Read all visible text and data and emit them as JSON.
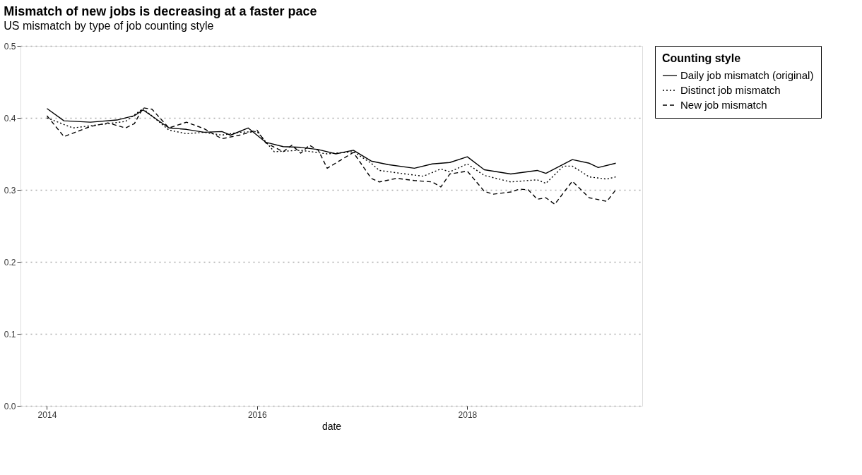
{
  "chart_data": {
    "type": "line",
    "title": "Mismatch of new jobs is decreasing at a faster pace",
    "subtitle": "US mismatch by type of job counting style",
    "xlabel": "date",
    "legend_title": "Counting style",
    "xlim": [
      "2013-10",
      "2019-09"
    ],
    "xticks": [
      "2014",
      "2016",
      "2018"
    ],
    "ylim": [
      0,
      0.5
    ],
    "yticks": [
      {
        "value": 0,
        "label": "0.0"
      },
      0.1,
      0.2,
      0.3,
      0.4,
      0.5
    ],
    "grid": "y",
    "legend": "right",
    "series": [
      {
        "name": "Daily job mismatch (original)",
        "color": "#000000",
        "line_style": "solid",
        "x": [
          "2014-01",
          "2014-03",
          "2014-06",
          "2014-09",
          "2014-11",
          "2014-12",
          "2015-03",
          "2015-05",
          "2015-07",
          "2015-09",
          "2015-10",
          "2015-12",
          "2016-02",
          "2016-04",
          "2016-06",
          "2016-08",
          "2016-10",
          "2016-12",
          "2017-02",
          "2017-04",
          "2017-07",
          "2017-09",
          "2017-11",
          "2018-01",
          "2018-03",
          "2018-06",
          "2018-09",
          "2018-10",
          "2019-01",
          "2019-03",
          "2019-04",
          "2019-06"
        ],
        "values": [
          0.413,
          0.396,
          0.394,
          0.397,
          0.403,
          0.411,
          0.386,
          0.384,
          0.38,
          0.381,
          0.376,
          0.386,
          0.366,
          0.36,
          0.359,
          0.356,
          0.35,
          0.355,
          0.34,
          0.335,
          0.33,
          0.336,
          0.338,
          0.346,
          0.328,
          0.322,
          0.327,
          0.323,
          0.342,
          0.337,
          0.331,
          0.337
        ]
      },
      {
        "name": "Distinct job mismatch",
        "color": "#000000",
        "line_style": "dotted",
        "x": [
          "2014-01",
          "2014-04",
          "2014-06",
          "2014-08",
          "2014-10",
          "2014-12",
          "2015-03",
          "2015-05",
          "2015-07",
          "2015-09",
          "2015-11",
          "2016-01",
          "2016-03",
          "2016-06",
          "2016-09",
          "2016-12",
          "2017-02",
          "2017-03",
          "2017-06",
          "2017-08",
          "2017-10",
          "2017-11",
          "2018-01",
          "2018-03",
          "2018-06",
          "2018-09",
          "2018-10",
          "2018-12",
          "2019-01",
          "2019-03",
          "2019-05",
          "2019-06"
        ],
        "values": [
          0.4,
          0.386,
          0.389,
          0.392,
          0.395,
          0.413,
          0.383,
          0.378,
          0.38,
          0.376,
          0.38,
          0.381,
          0.353,
          0.355,
          0.35,
          0.353,
          0.337,
          0.327,
          0.322,
          0.319,
          0.329,
          0.325,
          0.336,
          0.32,
          0.311,
          0.314,
          0.309,
          0.333,
          0.333,
          0.318,
          0.315,
          0.318
        ]
      },
      {
        "name": "New job mismatch",
        "color": "#000000",
        "line_style": "dashed",
        "x": [
          "2014-01",
          "2014-03",
          "2014-06",
          "2014-08",
          "2014-10",
          "2014-11",
          "2014-12",
          "2015-01",
          "2015-03",
          "2015-05",
          "2015-07",
          "2015-09",
          "2015-11",
          "2016-01",
          "2016-02",
          "2016-04",
          "2016-05",
          "2016-06",
          "2016-07",
          "2016-08",
          "2016-09",
          "2016-12",
          "2017-02",
          "2017-03",
          "2017-05",
          "2017-07",
          "2017-09",
          "2017-10",
          "2017-11",
          "2018-01",
          "2018-03",
          "2018-04",
          "2018-06",
          "2018-07",
          "2018-08",
          "2018-09",
          "2018-10",
          "2018-11",
          "2019-01",
          "2019-03",
          "2019-05",
          "2019-06"
        ],
        "values": [
          0.403,
          0.374,
          0.388,
          0.393,
          0.386,
          0.392,
          0.414,
          0.412,
          0.386,
          0.394,
          0.385,
          0.371,
          0.376,
          0.383,
          0.365,
          0.353,
          0.362,
          0.351,
          0.362,
          0.355,
          0.33,
          0.352,
          0.316,
          0.311,
          0.316,
          0.313,
          0.311,
          0.304,
          0.322,
          0.326,
          0.298,
          0.294,
          0.297,
          0.301,
          0.3,
          0.287,
          0.289,
          0.28,
          0.312,
          0.289,
          0.284,
          0.3
        ]
      }
    ]
  }
}
